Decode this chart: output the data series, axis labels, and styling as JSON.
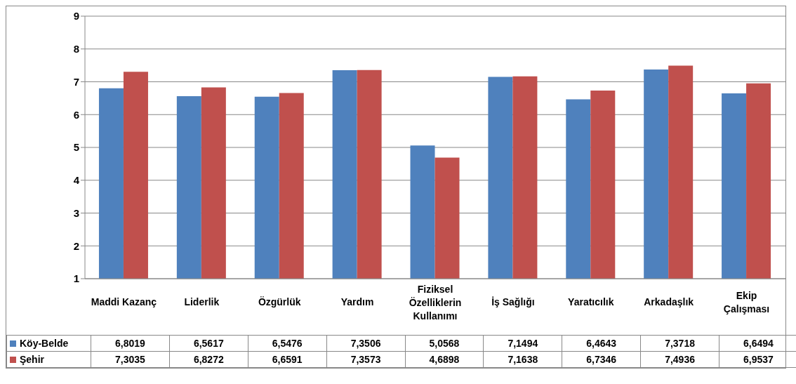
{
  "chart_data": {
    "type": "bar",
    "categories": [
      "Maddi Kazanç",
      "Liderlik",
      "Özgürlük",
      "Yardım",
      "Fiziksel Özelliklerin Kullanımı",
      "İş Sağlığı",
      "Yaratıcılık",
      "Arkadaşlık",
      "Ekip Çalışması"
    ],
    "series": [
      {
        "name": "Köy-Belde",
        "color": "#4f81bd",
        "values": [
          6.8019,
          6.5617,
          6.5476,
          7.3506,
          5.0568,
          7.1494,
          6.4643,
          7.3718,
          6.6494
        ],
        "value_labels": [
          "6,8019",
          "6,5617",
          "6,5476",
          "7,3506",
          "5,0568",
          "7,1494",
          "6,4643",
          "7,3718",
          "6,6494"
        ]
      },
      {
        "name": "Şehir",
        "color": "#c0504d",
        "values": [
          7.3035,
          6.8272,
          6.6591,
          7.3573,
          4.6898,
          7.1638,
          6.7346,
          7.4936,
          6.9537
        ],
        "value_labels": [
          "7,3035",
          "6,8272",
          "6,6591",
          "7,3573",
          "4,6898",
          "7,1638",
          "6,7346",
          "7,4936",
          "6,9537"
        ]
      }
    ],
    "ylim": [
      1,
      9
    ],
    "yticks": [
      1,
      2,
      3,
      4,
      5,
      6,
      7,
      8,
      9
    ],
    "grid": "y",
    "legend": "bottom left"
  }
}
